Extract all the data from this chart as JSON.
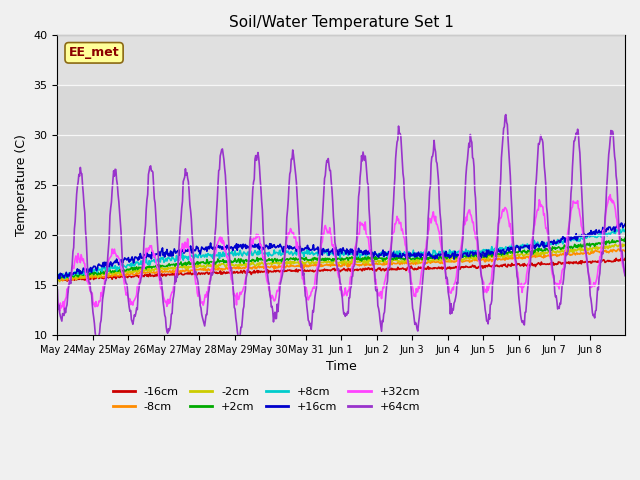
{
  "title": "Soil/Water Temperature Set 1",
  "xlabel": "Time",
  "ylabel": "Temperature (C)",
  "ylim": [
    10,
    40
  ],
  "n_days": 16,
  "annotation": "EE_met",
  "annotation_color": "#8B0000",
  "annotation_bg": "#FFFF99",
  "annotation_edge": "#8B6914",
  "fig_bg": "#F0F0F0",
  "plot_bg": "#E0E0E0",
  "band_bg": "#CCCCCC",
  "series": {
    "-16cm": {
      "color": "#CC0000",
      "lw": 1.2
    },
    "-8cm": {
      "color": "#FF8C00",
      "lw": 1.2
    },
    "-2cm": {
      "color": "#CCCC00",
      "lw": 1.2
    },
    "+2cm": {
      "color": "#00AA00",
      "lw": 1.2
    },
    "+8cm": {
      "color": "#00CCCC",
      "lw": 1.2
    },
    "+16cm": {
      "color": "#0000CC",
      "lw": 1.2
    },
    "+32cm": {
      "color": "#FF44FF",
      "lw": 1.2
    },
    "+64cm": {
      "color": "#9933CC",
      "lw": 1.2
    }
  },
  "xtick_labels": [
    "May 24",
    "May 25",
    "May 26",
    "May 27",
    "May 28",
    "May 29",
    "May 30",
    "May 31",
    "Jun 1",
    "Jun 2",
    "Jun 3",
    "Jun 4",
    "Jun 5",
    "Jun 6",
    "Jun 7",
    "Jun 8"
  ],
  "ytick_labels": [
    10,
    15,
    20,
    25,
    30,
    35,
    40
  ]
}
